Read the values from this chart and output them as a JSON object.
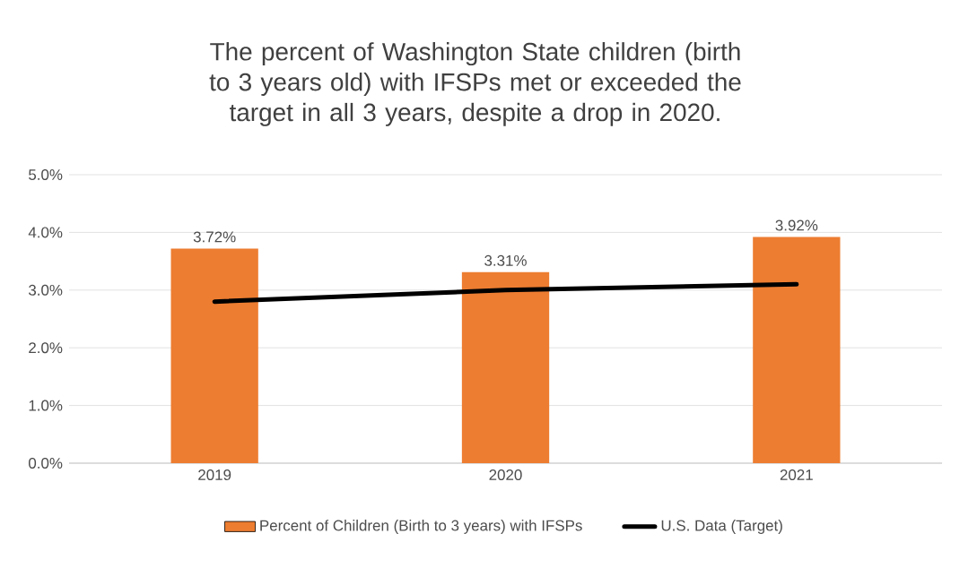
{
  "chart_data": {
    "type": "bar",
    "title": "The percent of Washington State children (birth to 3 years old) with IFSPs met or exceeded the target in all 3 years, despite a drop in 2020.",
    "categories": [
      "2019",
      "2020",
      "2021"
    ],
    "series": [
      {
        "name": "Percent of Children (Birth to 3 years) with IFSPs",
        "type": "bar",
        "color": "#ed7d31",
        "values": [
          3.72,
          3.31,
          3.92
        ],
        "value_labels": [
          "3.72%",
          "3.31%",
          "3.92%"
        ]
      },
      {
        "name": "U.S. Data (Target)",
        "type": "line",
        "color": "#000000",
        "values": [
          2.8,
          3.0,
          3.1
        ]
      }
    ],
    "ylim": [
      0,
      5
    ],
    "yticks": [
      {
        "value": 0,
        "label": "0.0%"
      },
      {
        "value": 1,
        "label": "1.0%"
      },
      {
        "value": 2,
        "label": "2.0%"
      },
      {
        "value": 3,
        "label": "3.0%"
      },
      {
        "value": 4,
        "label": "4.0%"
      },
      {
        "value": 5,
        "label": "5.0%"
      }
    ],
    "grid": "y",
    "legend": "bottom",
    "marker": "none",
    "line_style": "solid"
  }
}
